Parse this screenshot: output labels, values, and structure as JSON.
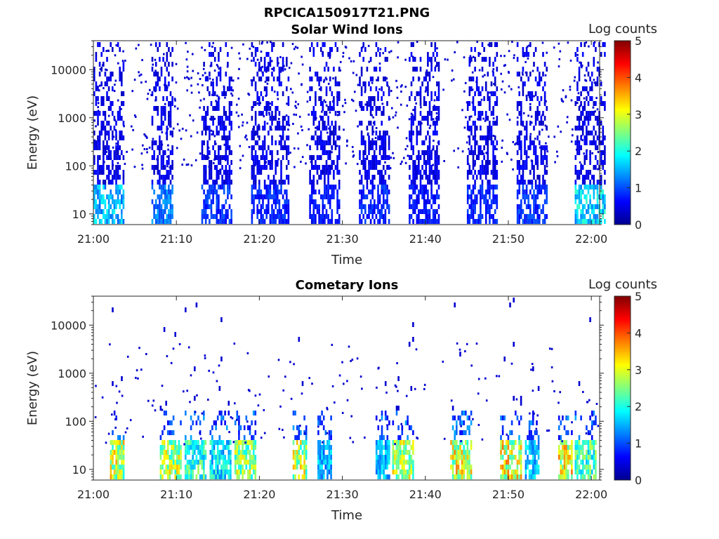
{
  "figure": {
    "title": "RPCICA150917T21.PNG"
  },
  "chart_data": [
    {
      "type": "heatmap",
      "title": "Solar Wind Ions",
      "xlabel": "Time",
      "ylabel": "Energy (eV)",
      "y_scale": "log",
      "ylim": [
        6,
        40000
      ],
      "xlim": [
        "21:00",
        "22:01"
      ],
      "x_ticks": [
        "21:00",
        "21:10",
        "21:20",
        "21:30",
        "21:40",
        "21:50",
        "22:00"
      ],
      "y_ticks": [
        "10",
        "100",
        "1000",
        "10000"
      ],
      "colorbar": {
        "label": "Log counts",
        "ticks": [
          "0",
          "1",
          "2",
          "3",
          "4",
          "5"
        ],
        "range": [
          0,
          5
        ],
        "colormap": "jet"
      },
      "bursts": [
        {
          "start": "21:00",
          "end": "21:03",
          "log_counts": 1.8
        },
        {
          "start": "21:07",
          "end": "21:09",
          "log_counts": 1.4
        },
        {
          "start": "21:13",
          "end": "21:16",
          "log_counts": 1.0
        },
        {
          "start": "21:19",
          "end": "21:23",
          "log_counts": 0.9
        },
        {
          "start": "21:26",
          "end": "21:29",
          "log_counts": 0.8
        },
        {
          "start": "21:32",
          "end": "21:35",
          "log_counts": 0.9
        },
        {
          "start": "21:38",
          "end": "21:41",
          "log_counts": 0.8
        },
        {
          "start": "21:45",
          "end": "21:48",
          "log_counts": 0.9
        },
        {
          "start": "21:51",
          "end": "21:54",
          "log_counts": 1.0
        },
        {
          "start": "21:58",
          "end": "22:01",
          "log_counts": 2.0
        }
      ]
    },
    {
      "type": "heatmap",
      "title": "Cometary Ions",
      "xlabel": "Time",
      "ylabel": "Energy (eV)",
      "y_scale": "log",
      "ylim": [
        6,
        40000
      ],
      "xlim": [
        "21:00",
        "22:01"
      ],
      "x_ticks": [
        "21:00",
        "21:10",
        "21:20",
        "21:30",
        "21:40",
        "21:50",
        "22:00"
      ],
      "y_ticks": [
        "10",
        "100",
        "1000",
        "10000"
      ],
      "colorbar": {
        "label": "Log counts",
        "ticks": [
          "0",
          "1",
          "2",
          "3",
          "4",
          "5"
        ],
        "range": [
          0,
          5
        ],
        "colormap": "jet"
      },
      "bursts": [
        {
          "start": "21:02",
          "end": "21:03",
          "log_counts": 3.5
        },
        {
          "start": "21:08",
          "end": "21:10",
          "log_counts": 3.3
        },
        {
          "start": "21:11",
          "end": "21:13",
          "log_counts": 2.6
        },
        {
          "start": "21:14",
          "end": "21:16",
          "log_counts": 2.2
        },
        {
          "start": "21:17",
          "end": "21:19",
          "log_counts": 3.2
        },
        {
          "start": "21:24",
          "end": "21:25",
          "log_counts": 3.4
        },
        {
          "start": "21:27",
          "end": "21:28",
          "log_counts": 1.8
        },
        {
          "start": "21:34",
          "end": "21:35",
          "log_counts": 1.9
        },
        {
          "start": "21:36",
          "end": "21:38",
          "log_counts": 3.3
        },
        {
          "start": "21:43",
          "end": "21:45",
          "log_counts": 3.6
        },
        {
          "start": "21:49",
          "end": "21:51",
          "log_counts": 3.7
        },
        {
          "start": "21:52",
          "end": "21:53",
          "log_counts": 2.0
        },
        {
          "start": "21:56",
          "end": "21:57",
          "log_counts": 3.8
        },
        {
          "start": "21:58",
          "end": "22:00",
          "log_counts": 2.7
        }
      ]
    }
  ]
}
